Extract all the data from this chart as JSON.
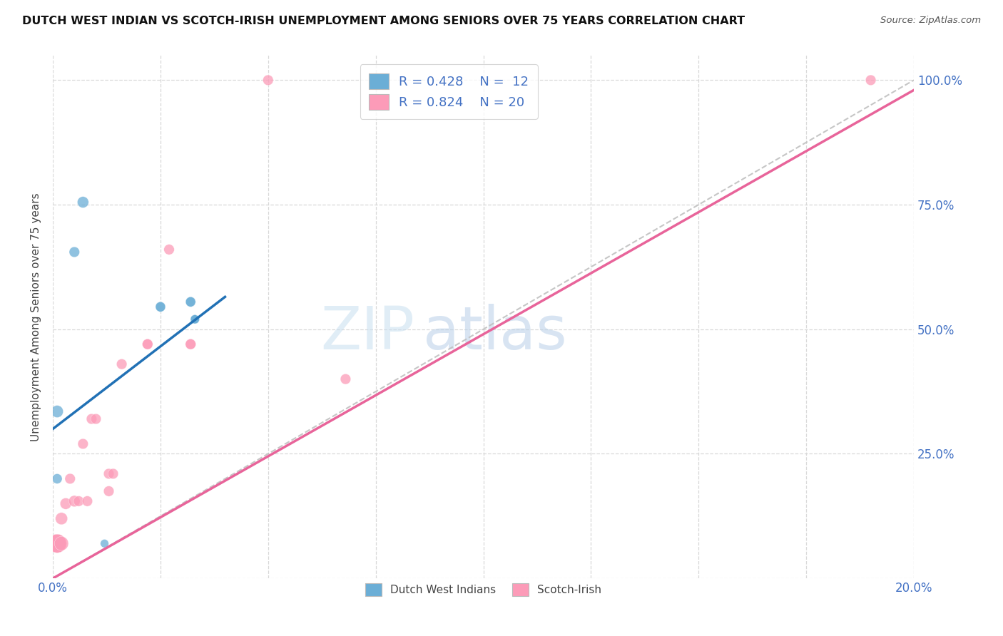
{
  "title": "DUTCH WEST INDIAN VS SCOTCH-IRISH UNEMPLOYMENT AMONG SENIORS OVER 75 YEARS CORRELATION CHART",
  "source": "Source: ZipAtlas.com",
  "xlabel": "",
  "ylabel": "Unemployment Among Seniors over 75 years",
  "xlim": [
    0.0,
    0.2
  ],
  "ylim": [
    0.0,
    1.05
  ],
  "xticks": [
    0.0,
    0.025,
    0.05,
    0.075,
    0.1,
    0.125,
    0.15,
    0.175,
    0.2
  ],
  "xticklabels": [
    "0.0%",
    "",
    "",
    "",
    "",
    "",
    "",
    "",
    "20.0%"
  ],
  "yticks": [
    0.0,
    0.25,
    0.5,
    0.75,
    1.0
  ],
  "yticklabels": [
    "",
    "25.0%",
    "50.0%",
    "75.0%",
    "100.0%"
  ],
  "blue_color": "#6baed6",
  "pink_color": "#fc9bb8",
  "blue_line_color": "#2171b5",
  "pink_line_color": "#e8649a",
  "dashed_line_color": "#c0c0c0",
  "legend_R_blue": "0.428",
  "legend_N_blue": "12",
  "legend_R_pink": "0.824",
  "legend_N_pink": "20",
  "legend_label_blue": "Dutch West Indians",
  "legend_label_pink": "Scotch-Irish",
  "watermark_zip": "ZIP",
  "watermark_atlas": "atlas",
  "blue_points": [
    [
      0.001,
      0.335
    ],
    [
      0.007,
      0.755
    ],
    [
      0.005,
      0.655
    ],
    [
      0.001,
      0.2
    ],
    [
      0.001,
      0.07
    ],
    [
      0.001,
      0.07
    ],
    [
      0.001,
      0.07
    ],
    [
      0.001,
      0.07
    ],
    [
      0.001,
      0.07
    ],
    [
      0.012,
      0.07
    ],
    [
      0.025,
      0.545
    ],
    [
      0.025,
      0.545
    ],
    [
      0.032,
      0.555
    ],
    [
      0.032,
      0.555
    ],
    [
      0.033,
      0.52
    ],
    [
      0.033,
      0.52
    ],
    [
      0.033,
      0.52
    ]
  ],
  "pink_points": [
    [
      0.001,
      0.07
    ],
    [
      0.001,
      0.07
    ],
    [
      0.001,
      0.07
    ],
    [
      0.001,
      0.07
    ],
    [
      0.001,
      0.07
    ],
    [
      0.002,
      0.07
    ],
    [
      0.002,
      0.12
    ],
    [
      0.003,
      0.15
    ],
    [
      0.004,
      0.2
    ],
    [
      0.005,
      0.155
    ],
    [
      0.006,
      0.155
    ],
    [
      0.007,
      0.27
    ],
    [
      0.008,
      0.155
    ],
    [
      0.009,
      0.32
    ],
    [
      0.01,
      0.32
    ],
    [
      0.013,
      0.175
    ],
    [
      0.013,
      0.21
    ],
    [
      0.014,
      0.21
    ],
    [
      0.016,
      0.43
    ],
    [
      0.022,
      0.47
    ],
    [
      0.022,
      0.47
    ],
    [
      0.027,
      0.66
    ],
    [
      0.032,
      0.47
    ],
    [
      0.032,
      0.47
    ],
    [
      0.068,
      0.4
    ],
    [
      0.05,
      1.0
    ],
    [
      0.19,
      1.0
    ]
  ],
  "blue_sizes": [
    150,
    130,
    110,
    100,
    220,
    220,
    220,
    220,
    220,
    70,
    100,
    100,
    100,
    100,
    80,
    80,
    80
  ],
  "pink_sizes": [
    350,
    350,
    350,
    350,
    350,
    200,
    150,
    130,
    110,
    130,
    110,
    110,
    110,
    110,
    110,
    110,
    110,
    110,
    110,
    110,
    110,
    110,
    110,
    110,
    110,
    110,
    110
  ],
  "blue_line_x": [
    0.0,
    0.04
  ],
  "blue_line_y": [
    0.3,
    0.565
  ],
  "pink_line_x": [
    0.0,
    0.2
  ],
  "pink_line_y": [
    0.0,
    0.98
  ],
  "diag_line_x": [
    0.0,
    0.2
  ],
  "diag_line_y": [
    0.0,
    1.0
  ]
}
